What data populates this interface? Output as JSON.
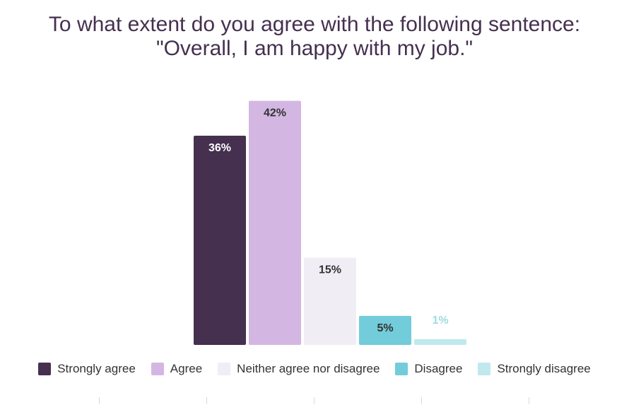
{
  "chart_data": {
    "type": "bar",
    "title_line1": "To what extent do you agree with the following sentence:",
    "title_line2": "\"Overall, I am happy with my job.\"",
    "categories": [
      "Strongly agree",
      "Agree",
      "Neither agree nor disagree",
      "Disagree",
      "Strongly disagree"
    ],
    "values": [
      36,
      42,
      15,
      5,
      1
    ],
    "value_labels": [
      "36%",
      "42%",
      "15%",
      "5%",
      "1%"
    ],
    "colors": [
      "#45304f",
      "#d3b7e2",
      "#f0eef4",
      "#72ccd9",
      "#bfe9ec"
    ],
    "label_colors": [
      "#ffffff",
      "#333333",
      "#333333",
      "#333333",
      "#9fdbe2"
    ],
    "ylim": [
      0,
      45
    ],
    "grid": false,
    "legend_position": "bottom"
  }
}
